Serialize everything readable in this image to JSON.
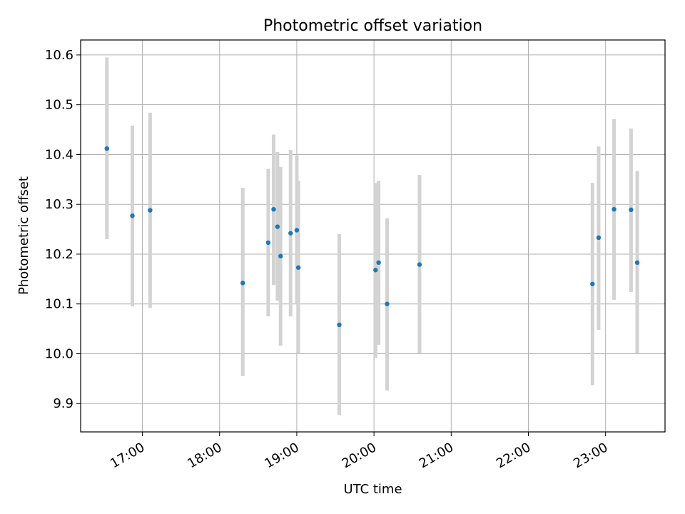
{
  "chart_data": {
    "type": "scatter",
    "title": "Photometric offset variation",
    "xlabel": "UTC time",
    "ylabel": "Photometric offset",
    "x_unit": "hours UTC",
    "xlim": [
      16.2,
      23.77
    ],
    "ylim": [
      9.843,
      10.63
    ],
    "grid": true,
    "x_ticks": [
      {
        "value": 17,
        "label": "17:00"
      },
      {
        "value": 18,
        "label": "18:00"
      },
      {
        "value": 19,
        "label": "19:00"
      },
      {
        "value": 20,
        "label": "20:00"
      },
      {
        "value": 21,
        "label": "21:00"
      },
      {
        "value": 22,
        "label": "22:00"
      },
      {
        "value": 23,
        "label": "23:00"
      }
    ],
    "y_ticks": [
      {
        "value": 9.9,
        "label": "9.9"
      },
      {
        "value": 10.0,
        "label": "10.0"
      },
      {
        "value": 10.1,
        "label": "10.1"
      },
      {
        "value": 10.2,
        "label": "10.2"
      },
      {
        "value": 10.3,
        "label": "10.3"
      },
      {
        "value": 10.4,
        "label": "10.4"
      },
      {
        "value": 10.5,
        "label": "10.5"
      },
      {
        "value": 10.6,
        "label": "10.6"
      }
    ],
    "point_color": "#1f77b4",
    "errorbar_color": "#d3d3d3",
    "points": [
      {
        "x": 16.54,
        "y": 10.412,
        "ylow": 10.23,
        "yhigh": 10.595
      },
      {
        "x": 16.87,
        "y": 10.277,
        "ylow": 10.095,
        "yhigh": 10.458
      },
      {
        "x": 17.1,
        "y": 10.288,
        "ylow": 10.092,
        "yhigh": 10.484
      },
      {
        "x": 18.3,
        "y": 10.142,
        "ylow": 9.955,
        "yhigh": 10.333
      },
      {
        "x": 18.63,
        "y": 10.223,
        "ylow": 10.075,
        "yhigh": 10.371
      },
      {
        "x": 18.7,
        "y": 10.29,
        "ylow": 10.138,
        "yhigh": 10.44
      },
      {
        "x": 18.75,
        "y": 10.255,
        "ylow": 10.106,
        "yhigh": 10.405
      },
      {
        "x": 18.79,
        "y": 10.196,
        "ylow": 10.016,
        "yhigh": 10.375
      },
      {
        "x": 18.92,
        "y": 10.242,
        "ylow": 10.075,
        "yhigh": 10.409
      },
      {
        "x": 19.0,
        "y": 10.248,
        "ylow": 10.102,
        "yhigh": 10.398
      },
      {
        "x": 19.02,
        "y": 10.173,
        "ylow": 10.0,
        "yhigh": 10.347
      },
      {
        "x": 19.55,
        "y": 10.058,
        "ylow": 9.877,
        "yhigh": 10.24
      },
      {
        "x": 20.02,
        "y": 10.168,
        "ylow": 9.992,
        "yhigh": 10.343
      },
      {
        "x": 20.06,
        "y": 10.183,
        "ylow": 10.018,
        "yhigh": 10.347
      },
      {
        "x": 20.17,
        "y": 10.1,
        "ylow": 9.926,
        "yhigh": 10.272
      },
      {
        "x": 20.59,
        "y": 10.179,
        "ylow": 10.0,
        "yhigh": 10.359
      },
      {
        "x": 22.83,
        "y": 10.14,
        "ylow": 9.937,
        "yhigh": 10.343
      },
      {
        "x": 22.91,
        "y": 10.233,
        "ylow": 10.048,
        "yhigh": 10.416
      },
      {
        "x": 23.11,
        "y": 10.29,
        "ylow": 10.108,
        "yhigh": 10.471
      },
      {
        "x": 23.33,
        "y": 10.289,
        "ylow": 10.124,
        "yhigh": 10.452
      },
      {
        "x": 23.41,
        "y": 10.183,
        "ylow": 10.0,
        "yhigh": 10.367
      }
    ]
  }
}
